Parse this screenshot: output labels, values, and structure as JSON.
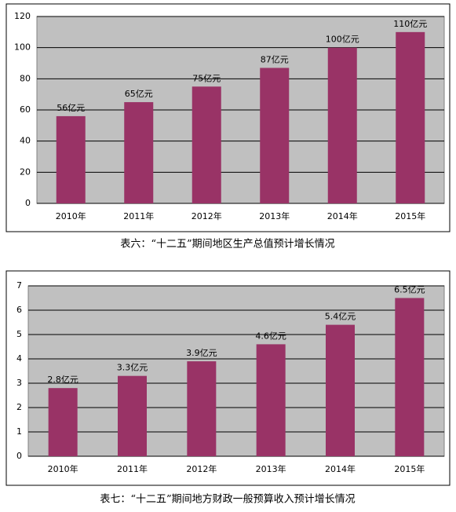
{
  "chart_data": [
    {
      "type": "bar",
      "caption": "表六：“十二五”期间地区生产总值预计增长情况",
      "categories": [
        "2010年",
        "2011年",
        "2012年",
        "2013年",
        "2014年",
        "2015年"
      ],
      "values": [
        56,
        65,
        75,
        87,
        100,
        110
      ],
      "value_labels": [
        "56亿元",
        "65亿元",
        "75亿元",
        "87亿元",
        "100亿元",
        "110亿元"
      ],
      "color": "#993366",
      "ylim": [
        0,
        120
      ],
      "yticks": [
        0,
        20,
        40,
        60,
        80,
        100,
        120
      ],
      "grid": true
    },
    {
      "type": "bar",
      "caption": "表七：“十二五”期间地方财政一般预算收入预计增长情况",
      "categories": [
        "2010年",
        "2011年",
        "2012年",
        "2013年",
        "2014年",
        "2015年"
      ],
      "values": [
        2.8,
        3.3,
        3.9,
        4.6,
        5.4,
        6.5
      ],
      "value_labels": [
        "2.8亿元",
        "3.3亿元",
        "3.9亿元",
        "4.6亿元",
        "5.4亿元",
        "6.5亿元"
      ],
      "color": "#993366",
      "ylim": [
        0,
        7
      ],
      "yticks": [
        0,
        1,
        2,
        3,
        4,
        5,
        6,
        7
      ],
      "grid": true
    }
  ]
}
